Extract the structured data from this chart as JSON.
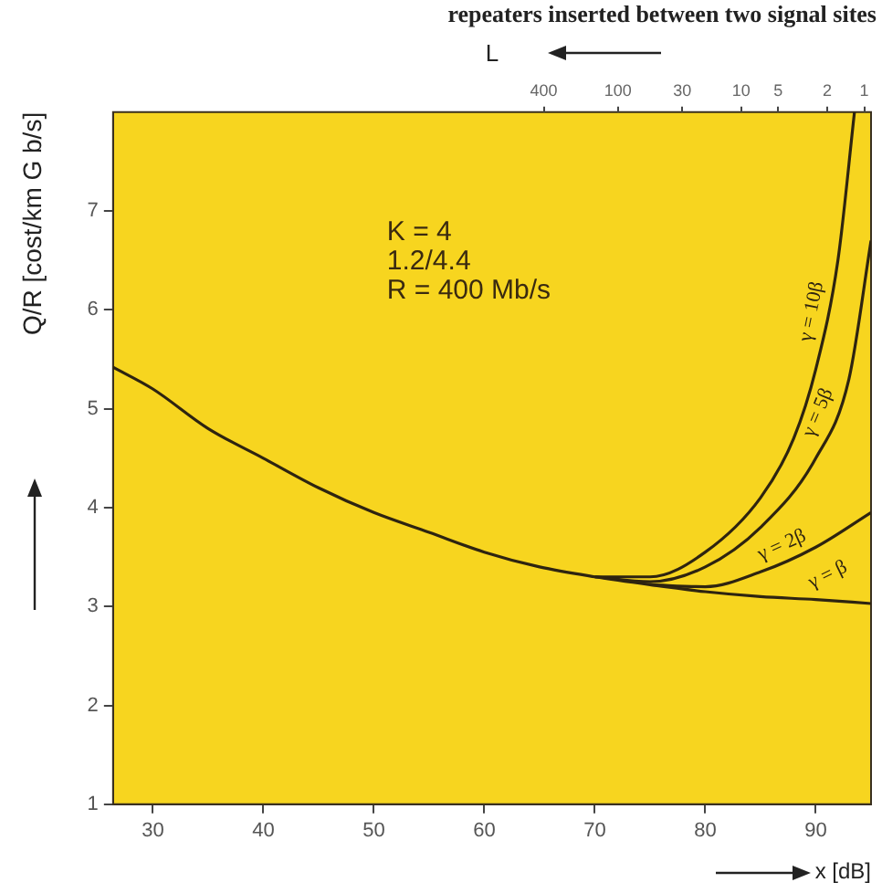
{
  "chart_data": {
    "type": "line",
    "xlabel": "x [dB]",
    "ylabel": "Q/R [cost/km G b/s]",
    "x2label": "L",
    "annotations": [
      "repeaters inserted between two signal sites",
      "K = 4",
      "1.2/4.4",
      "R = 400 Mb/s"
    ],
    "xlim": [
      26.4,
      95
    ],
    "xticks": [
      30,
      40,
      50,
      60,
      70,
      80,
      90
    ],
    "x2lim": [
      1260000,
      0.88
    ],
    "x2ticks": [
      400,
      100,
      30,
      10,
      5,
      2,
      1
    ],
    "log": "x2",
    "ylim": [
      1,
      8
    ],
    "yticks": [
      1,
      2,
      3,
      4,
      5,
      6,
      7
    ],
    "grid": false,
    "legend": false,
    "marker": "none",
    "line_style": "solid",
    "series": [
      {
        "name": "γ = β",
        "color": "#2e2410",
        "x": [
          26.4,
          30,
          35,
          40,
          45,
          50,
          55,
          60,
          65,
          70,
          75,
          80,
          85,
          90,
          95
        ],
        "values": [
          5.42,
          5.2,
          4.8,
          4.5,
          4.2,
          3.95,
          3.75,
          3.55,
          3.4,
          3.3,
          3.22,
          3.15,
          3.1,
          3.07,
          3.03
        ]
      },
      {
        "name": "γ = 2β",
        "color": "#2e2410",
        "x": [
          75,
          80,
          85,
          90,
          95
        ],
        "values": [
          3.22,
          3.2,
          3.35,
          3.6,
          3.95
        ]
      },
      {
        "name": "γ = 5β",
        "color": "#2e2410",
        "x": [
          70,
          75,
          80,
          85,
          90,
          93,
          95
        ],
        "values": [
          3.3,
          3.25,
          3.4,
          3.8,
          4.5,
          5.3,
          6.7
        ]
      },
      {
        "name": "γ = 10β",
        "color": "#2e2410",
        "x": [
          70,
          75,
          80,
          85,
          88,
          90,
          92,
          93.5
        ],
        "values": [
          3.3,
          3.3,
          3.55,
          4.1,
          4.7,
          5.4,
          6.5,
          8
        ]
      }
    ]
  }
}
